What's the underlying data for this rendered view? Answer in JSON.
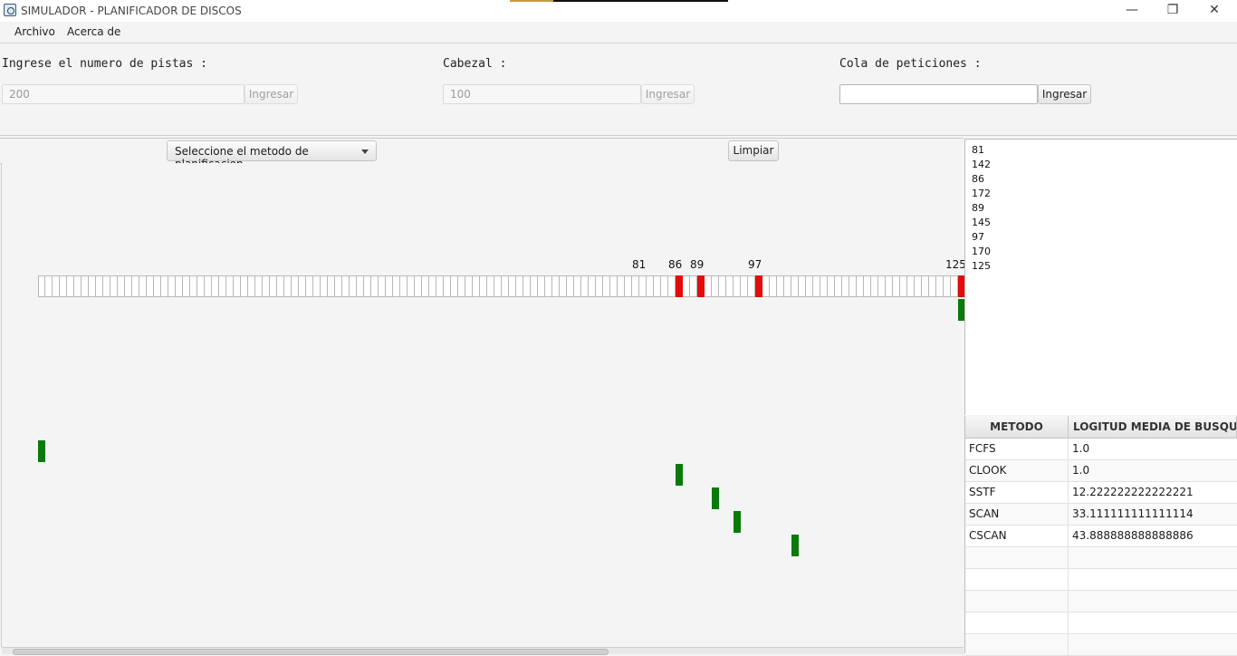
{
  "window": {
    "title": "SIMULADOR - PLANIFICADOR DE DISCOS",
    "minimize": "—",
    "restore": "❐",
    "close": "✕"
  },
  "menu": {
    "items": [
      "Archivo",
      "Acerca de"
    ]
  },
  "inputs": {
    "tracks": {
      "label": "Ingrese el numero de pistas :",
      "value": "200",
      "button": "Ingresar"
    },
    "head": {
      "label": "Cabezal :",
      "value": "100",
      "button": "Ingresar"
    },
    "queue": {
      "label": "Cola de peticiones :",
      "value": "",
      "button": "Ingresar"
    }
  },
  "toolbar": {
    "method_select": "Seleccione el metodo de planificacion",
    "clear_button": "Limpiar"
  },
  "disk": {
    "visible_tracks": 128,
    "requests": [
      81,
      86,
      89,
      97,
      125
    ],
    "labels": [
      "81",
      "86",
      "89",
      "97",
      "125"
    ],
    "colors": {
      "request": "#e50b0b",
      "path": "#0a7a0a"
    }
  },
  "queue_list": [
    "81",
    "142",
    "86",
    "172",
    "89",
    "145",
    "97",
    "170",
    "125"
  ],
  "results": {
    "headers": [
      "METODO",
      "LOGITUD MEDIA DE BUSQUE..."
    ],
    "rows": [
      {
        "method": "FCFS",
        "value": "1.0"
      },
      {
        "method": "CLOOK",
        "value": "1.0"
      },
      {
        "method": "SSTF",
        "value": "12.222222222222221"
      },
      {
        "method": "SCAN",
        "value": "33.111111111111114"
      },
      {
        "method": "CSCAN",
        "value": "43.888888888888886"
      }
    ]
  }
}
